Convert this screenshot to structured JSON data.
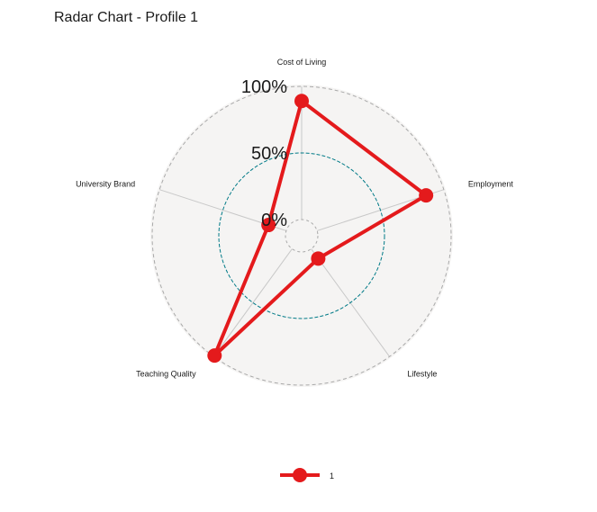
{
  "title": "Radar Chart - Profile 1",
  "chart_data": {
    "type": "radar",
    "title": "Radar Chart - Profile 1",
    "axes": [
      "Cost of Living",
      "Employment",
      "Lifestyle",
      "Teaching Quality",
      "University Brand"
    ],
    "grid_labels": [
      "0%",
      "50%",
      "100%"
    ],
    "grid_values": [
      0,
      0.5,
      1
    ],
    "series": [
      {
        "name": "1",
        "values": [
          0.89,
          0.86,
          0.09,
          0.99,
          0.14
        ],
        "color": "#e41a1c"
      }
    ],
    "colors": {
      "background_fill": "#f5f4f3",
      "outer_ring": "#a9a9a9",
      "mid_ring": "#007a87",
      "axis_lines": "#c8c8c8"
    },
    "legend_position": "bottom",
    "grid": true
  }
}
